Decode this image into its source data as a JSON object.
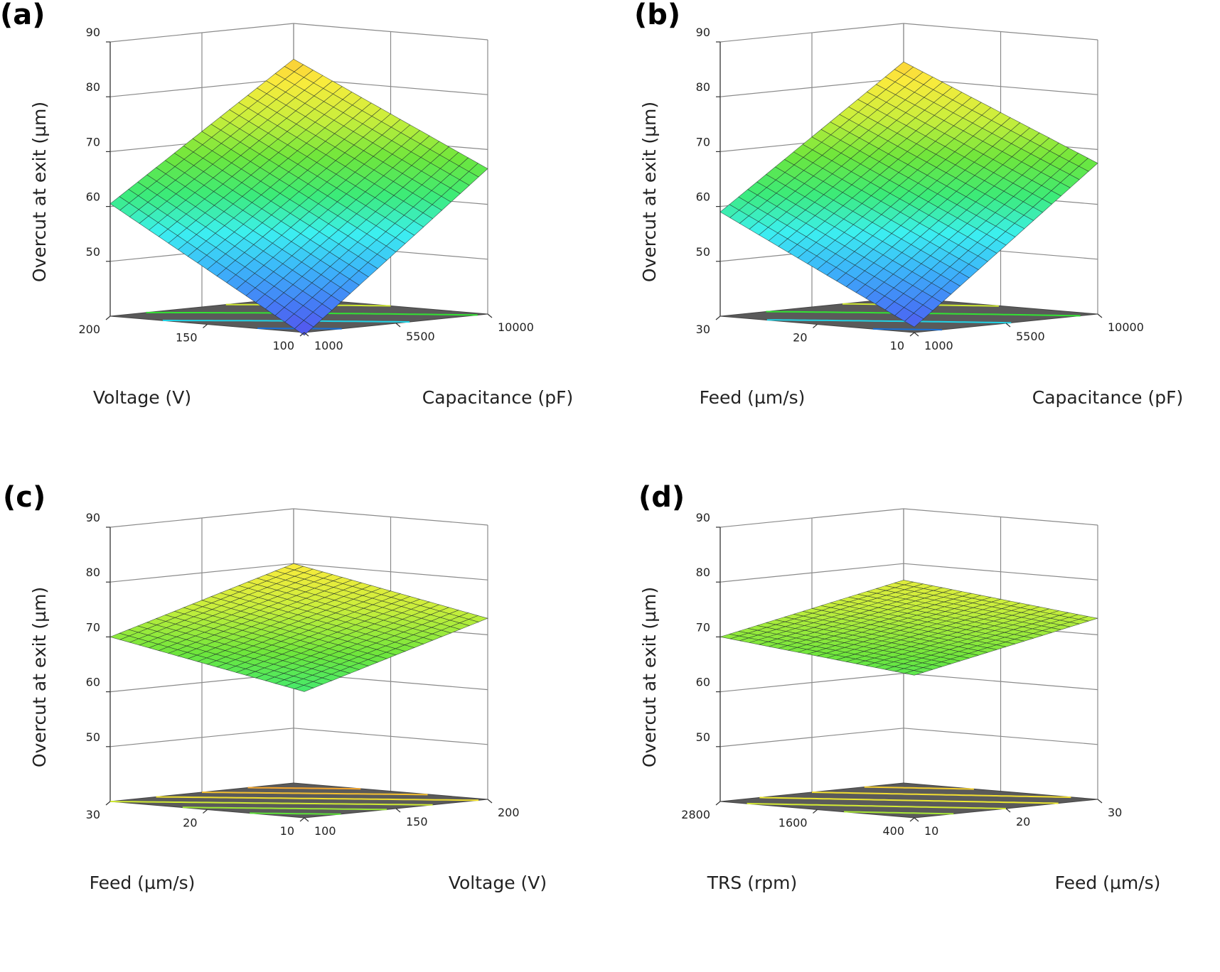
{
  "figure": {
    "label_color": "#222222",
    "floor_color": "#5a5a5a",
    "grid_color": "#8a8a8a"
  },
  "chart_data": [
    {
      "panel_label": "(a)",
      "type": "surface3d",
      "zlabel": "Overcut at exit (µm)",
      "zlim": [
        40,
        90
      ],
      "zticks": [
        "50",
        "60",
        "70",
        "80",
        "90"
      ],
      "left_axis": {
        "label": "Voltage (V)",
        "ticks": [
          "100",
          "150",
          "200"
        ],
        "range": [
          100,
          200
        ]
      },
      "right_axis": {
        "label": "Capacitance (pF)",
        "ticks": [
          "1000",
          "5500",
          "10000"
        ],
        "range": [
          1000,
          10000
        ]
      },
      "corner_values": {
        "left_min_right_min": 39.5,
        "left_max_right_min": 60.5,
        "left_min_right_max": 66.5,
        "left_max_right_max": 83.5
      },
      "floor_contours": [
        {
          "level": 45,
          "color": "#1a6fd6"
        },
        {
          "level": 55,
          "color": "#22d3e6"
        },
        {
          "level": 65,
          "color": "#33e233"
        },
        {
          "level": 75,
          "color": "#cfe832"
        }
      ]
    },
    {
      "panel_label": "(b)",
      "type": "surface3d",
      "zlabel": "Overcut at exit (µm)",
      "zlim": [
        40,
        90
      ],
      "zticks": [
        "50",
        "60",
        "70",
        "80",
        "90"
      ],
      "left_axis": {
        "label": "Feed (µm/s)",
        "ticks": [
          "10",
          "20",
          "30"
        ],
        "range": [
          10,
          30
        ]
      },
      "right_axis": {
        "label": "Capacitance (pF)",
        "ticks": [
          "1000",
          "5500",
          "10000"
        ],
        "range": [
          1000,
          10000
        ]
      },
      "corner_values": {
        "left_min_right_min": 41,
        "left_max_right_min": 59,
        "left_min_right_max": 67.5,
        "left_max_right_max": 83
      },
      "floor_contours": [
        {
          "level": 45,
          "color": "#1a6fd6"
        },
        {
          "level": 55,
          "color": "#22d3e6"
        },
        {
          "level": 65,
          "color": "#33e233"
        },
        {
          "level": 75,
          "color": "#cfe832"
        }
      ]
    },
    {
      "panel_label": "(c)",
      "type": "surface3d",
      "zlabel": "Overcut at exit (µm)",
      "zlim": [
        40,
        90
      ],
      "zticks": [
        "50",
        "60",
        "70",
        "80",
        "90"
      ],
      "left_axis": {
        "label": "Feed (µm/s)",
        "ticks": [
          "10",
          "20",
          "30"
        ],
        "range": [
          10,
          30
        ]
      },
      "right_axis": {
        "label": "Voltage (V)",
        "ticks": [
          "100",
          "150",
          "200"
        ],
        "range": [
          100,
          200
        ]
      },
      "corner_values": {
        "left_min_right_min": 63,
        "left_max_right_min": 70,
        "left_min_right_max": 73,
        "left_max_right_max": 80
      },
      "floor_contours": [
        {
          "level": 65,
          "color": "#5fe23a"
        },
        {
          "level": 67.5,
          "color": "#9be636"
        },
        {
          "level": 70,
          "color": "#d0ea34"
        },
        {
          "level": 72.5,
          "color": "#f0e030"
        },
        {
          "level": 75,
          "color": "#f5c030"
        },
        {
          "level": 77.5,
          "color": "#f5a830"
        }
      ]
    },
    {
      "panel_label": "(d)",
      "type": "surface3d",
      "zlabel": "Overcut at exit (µm)",
      "zlim": [
        40,
        90
      ],
      "zticks": [
        "50",
        "60",
        "70",
        "80",
        "90"
      ],
      "left_axis": {
        "label": "TRS (rpm)",
        "ticks": [
          "400",
          "1600",
          "2800"
        ],
        "range": [
          400,
          2800
        ]
      },
      "right_axis": {
        "label": "Feed (µm/s)",
        "ticks": [
          "10",
          "20",
          "30"
        ],
        "range": [
          10,
          30
        ]
      },
      "corner_values": {
        "left_min_right_min": 66,
        "left_max_right_min": 70,
        "left_min_right_max": 73,
        "left_max_right_max": 77
      },
      "floor_contours": [
        {
          "level": 67.5,
          "color": "#a8e836"
        },
        {
          "level": 69.5,
          "color": "#d4ea34"
        },
        {
          "level": 71.5,
          "color": "#ece832"
        },
        {
          "level": 73.5,
          "color": "#f2de32"
        },
        {
          "level": 75.5,
          "color": "#f4d032"
        }
      ]
    }
  ]
}
